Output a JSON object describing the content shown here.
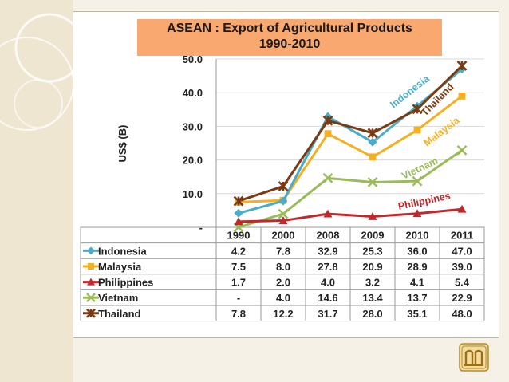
{
  "title_line1": "ASEAN : Export of Agricultural Products",
  "title_line2": "1990-2010",
  "colors": {
    "accent_bar": "#f9a870",
    "Indonesia": "#4bacc6",
    "Malaysia": "#f5b021",
    "Philippines": "#c0282c",
    "Vietnam": "#9bbb59",
    "Thailand": "#7a3b12"
  },
  "chart_data": {
    "type": "line",
    "ylabel": "US$ (B)",
    "ylim": [
      0,
      50
    ],
    "yticks": [
      0,
      10,
      20,
      30,
      40,
      50
    ],
    "ytick_labels": [
      "-",
      "10.0",
      "20.0",
      "30.0",
      "40.0",
      "50.0"
    ],
    "categories": [
      "1990",
      "2000",
      "2008",
      "2009",
      "2010",
      "2011"
    ],
    "series": [
      {
        "name": "Indonesia",
        "values": [
          4.2,
          7.8,
          32.9,
          25.3,
          36.0,
          47.0
        ],
        "table": [
          "4.2",
          "7.8",
          "32.9",
          "25.3",
          "36.0",
          "47.0"
        ],
        "marker": "diamond"
      },
      {
        "name": "Malaysia",
        "values": [
          7.5,
          8.0,
          27.8,
          20.9,
          28.9,
          39.0
        ],
        "table": [
          "7.5",
          "8.0",
          "27.8",
          "20.9",
          "28.9",
          "39.0"
        ],
        "marker": "square"
      },
      {
        "name": "Philippines",
        "values": [
          1.7,
          2.0,
          4.0,
          3.2,
          4.1,
          5.4
        ],
        "table": [
          "1.7",
          "2.0",
          "4.0",
          "3.2",
          "4.1",
          "5.4"
        ],
        "marker": "triangle"
      },
      {
        "name": "Vietnam",
        "values": [
          0,
          4.0,
          14.6,
          13.4,
          13.7,
          22.9
        ],
        "table": [
          "-",
          "4.0",
          "14.6",
          "13.4",
          "13.7",
          "22.9"
        ],
        "marker": "x"
      },
      {
        "name": "Thailand",
        "values": [
          7.8,
          12.2,
          31.7,
          28.0,
          35.1,
          48.0
        ],
        "table": [
          "7.8",
          "12.2",
          "31.7",
          "28.0",
          "35.1",
          "48.0"
        ],
        "marker": "star"
      }
    ],
    "annotations": [
      {
        "text": "Indonesia",
        "series": "Indonesia"
      },
      {
        "text": "Thailand",
        "series": "Thailand"
      },
      {
        "text": "Malaysia",
        "series": "Malaysia"
      },
      {
        "text": "Vietnam",
        "series": "Vietnam"
      },
      {
        "text": "Philippines",
        "series": "Philippines"
      }
    ],
    "grid": true
  }
}
